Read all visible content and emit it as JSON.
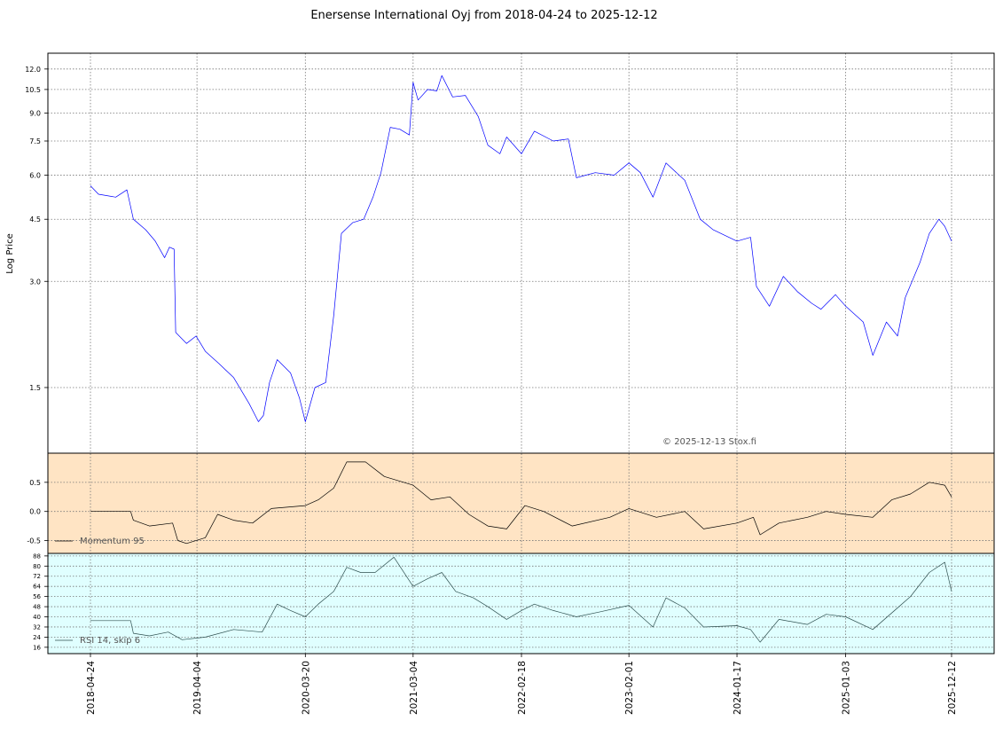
{
  "chart_data": {
    "type": "line",
    "title": "Enersense International Oyj from 2018-04-24 to 2025-12-12",
    "watermark": "© 2025-12-13 Stox.fi",
    "x_tick_labels": [
      "2018-04-24",
      "2019-04-04",
      "2020-03-20",
      "2021-03-04",
      "2022-02-18",
      "2023-02-01",
      "2024-01-17",
      "2025-01-03",
      "2025-12-12"
    ],
    "price_panel": {
      "ylabel": "Log Price",
      "scale": "log",
      "y_ticks": [
        "1.5",
        "3.0",
        "4.5",
        "6.0",
        "7.5",
        "9.0",
        "10.5",
        "12.0"
      ],
      "ylim": [
        1.0,
        13.0
      ],
      "series_color": "#0000ff",
      "series": [
        {
          "x": "2018-04-24",
          "y": 5.6
        },
        {
          "x": "2018-05-20",
          "y": 5.3
        },
        {
          "x": "2018-07-15",
          "y": 5.2
        },
        {
          "x": "2018-08-20",
          "y": 5.45
        },
        {
          "x": "2018-09-10",
          "y": 4.5
        },
        {
          "x": "2018-10-20",
          "y": 4.2
        },
        {
          "x": "2018-11-20",
          "y": 3.9
        },
        {
          "x": "2018-12-20",
          "y": 3.5
        },
        {
          "x": "2019-01-05",
          "y": 3.75
        },
        {
          "x": "2019-01-20",
          "y": 3.7
        },
        {
          "x": "2019-01-25",
          "y": 2.15
        },
        {
          "x": "2019-03-01",
          "y": 2.0
        },
        {
          "x": "2019-04-01",
          "y": 2.1
        },
        {
          "x": "2019-05-01",
          "y": 1.9
        },
        {
          "x": "2019-06-15",
          "y": 1.75
        },
        {
          "x": "2019-08-01",
          "y": 1.6
        },
        {
          "x": "2019-09-20",
          "y": 1.35
        },
        {
          "x": "2019-10-20",
          "y": 1.2
        },
        {
          "x": "2019-11-05",
          "y": 1.25
        },
        {
          "x": "2019-11-25",
          "y": 1.55
        },
        {
          "x": "2019-12-20",
          "y": 1.8
        },
        {
          "x": "2020-02-01",
          "y": 1.65
        },
        {
          "x": "2020-03-01",
          "y": 1.4
        },
        {
          "x": "2020-03-20",
          "y": 1.2
        },
        {
          "x": "2020-04-20",
          "y": 1.5
        },
        {
          "x": "2020-05-25",
          "y": 1.55
        },
        {
          "x": "2020-06-20",
          "y": 2.4
        },
        {
          "x": "2020-07-15",
          "y": 4.1
        },
        {
          "x": "2020-08-20",
          "y": 4.4
        },
        {
          "x": "2020-09-25",
          "y": 4.5
        },
        {
          "x": "2020-10-25",
          "y": 5.2
        },
        {
          "x": "2020-11-20",
          "y": 6.1
        },
        {
          "x": "2020-12-20",
          "y": 8.2
        },
        {
          "x": "2021-01-20",
          "y": 8.1
        },
        {
          "x": "2021-02-20",
          "y": 7.8
        },
        {
          "x": "2021-03-04",
          "y": 11.0
        },
        {
          "x": "2021-03-20",
          "y": 9.8
        },
        {
          "x": "2021-04-20",
          "y": 10.5
        },
        {
          "x": "2021-05-20",
          "y": 10.4
        },
        {
          "x": "2021-06-05",
          "y": 11.5
        },
        {
          "x": "2021-07-10",
          "y": 10.0
        },
        {
          "x": "2021-08-20",
          "y": 10.1
        },
        {
          "x": "2021-10-01",
          "y": 8.8
        },
        {
          "x": "2021-11-01",
          "y": 7.3
        },
        {
          "x": "2021-12-10",
          "y": 6.9
        },
        {
          "x": "2022-01-01",
          "y": 7.7
        },
        {
          "x": "2022-02-18",
          "y": 6.9
        },
        {
          "x": "2022-04-01",
          "y": 8.0
        },
        {
          "x": "2022-06-01",
          "y": 7.5
        },
        {
          "x": "2022-07-20",
          "y": 7.6
        },
        {
          "x": "2022-08-15",
          "y": 5.9
        },
        {
          "x": "2022-10-15",
          "y": 6.1
        },
        {
          "x": "2022-12-15",
          "y": 6.0
        },
        {
          "x": "2023-02-01",
          "y": 6.5
        },
        {
          "x": "2023-03-10",
          "y": 6.1
        },
        {
          "x": "2023-04-20",
          "y": 5.2
        },
        {
          "x": "2023-06-01",
          "y": 6.5
        },
        {
          "x": "2023-08-01",
          "y": 5.8
        },
        {
          "x": "2023-09-20",
          "y": 4.5
        },
        {
          "x": "2023-11-01",
          "y": 4.2
        },
        {
          "x": "2024-01-17",
          "y": 3.9
        },
        {
          "x": "2024-03-01",
          "y": 4.0
        },
        {
          "x": "2024-03-20",
          "y": 2.9
        },
        {
          "x": "2024-05-01",
          "y": 2.55
        },
        {
          "x": "2024-06-15",
          "y": 3.1
        },
        {
          "x": "2024-08-01",
          "y": 2.8
        },
        {
          "x": "2024-09-15",
          "y": 2.6
        },
        {
          "x": "2024-10-15",
          "y": 2.5
        },
        {
          "x": "2024-12-01",
          "y": 2.75
        },
        {
          "x": "2025-01-03",
          "y": 2.55
        },
        {
          "x": "2025-03-01",
          "y": 2.3
        },
        {
          "x": "2025-04-01",
          "y": 1.85
        },
        {
          "x": "2025-05-15",
          "y": 2.3
        },
        {
          "x": "2025-06-20",
          "y": 2.1
        },
        {
          "x": "2025-07-15",
          "y": 2.7
        },
        {
          "x": "2025-09-01",
          "y": 3.4
        },
        {
          "x": "2025-10-01",
          "y": 4.1
        },
        {
          "x": "2025-11-01",
          "y": 4.5
        },
        {
          "x": "2025-11-20",
          "y": 4.3
        },
        {
          "x": "2025-12-12",
          "y": 3.9
        }
      ]
    },
    "momentum_panel": {
      "legend": "Momentum 95",
      "y_ticks": [
        "-0.5",
        "0.0",
        "0.5"
      ],
      "y_tick_values": [
        -0.5,
        0.0,
        0.5
      ],
      "ylim": [
        -0.72,
        1.0
      ],
      "background": "#ffe4c4",
      "series_color": "#000000",
      "series": [
        {
          "x": "2018-04-24",
          "y": 0.0
        },
        {
          "x": "2018-09-01",
          "y": 0.0
        },
        {
          "x": "2018-09-10",
          "y": -0.15
        },
        {
          "x": "2018-11-01",
          "y": -0.25
        },
        {
          "x": "2019-01-15",
          "y": -0.2
        },
        {
          "x": "2019-02-01",
          "y": -0.5
        },
        {
          "x": "2019-03-01",
          "y": -0.55
        },
        {
          "x": "2019-05-01",
          "y": -0.45
        },
        {
          "x": "2019-06-10",
          "y": -0.05
        },
        {
          "x": "2019-08-01",
          "y": -0.15
        },
        {
          "x": "2019-10-01",
          "y": -0.2
        },
        {
          "x": "2019-12-01",
          "y": 0.05
        },
        {
          "x": "2020-03-20",
          "y": 0.1
        },
        {
          "x": "2020-05-01",
          "y": 0.2
        },
        {
          "x": "2020-06-20",
          "y": 0.4
        },
        {
          "x": "2020-08-01",
          "y": 0.85
        },
        {
          "x": "2020-10-01",
          "y": 0.85
        },
        {
          "x": "2020-12-01",
          "y": 0.6
        },
        {
          "x": "2021-03-04",
          "y": 0.45
        },
        {
          "x": "2021-05-01",
          "y": 0.2
        },
        {
          "x": "2021-07-01",
          "y": 0.25
        },
        {
          "x": "2021-09-01",
          "y": -0.05
        },
        {
          "x": "2021-11-01",
          "y": -0.25
        },
        {
          "x": "2022-01-01",
          "y": -0.3
        },
        {
          "x": "2022-03-01",
          "y": 0.1
        },
        {
          "x": "2022-05-01",
          "y": 0.0
        },
        {
          "x": "2022-08-01",
          "y": -0.25
        },
        {
          "x": "2022-12-01",
          "y": -0.1
        },
        {
          "x": "2023-02-01",
          "y": 0.05
        },
        {
          "x": "2023-05-01",
          "y": -0.1
        },
        {
          "x": "2023-08-01",
          "y": 0.0
        },
        {
          "x": "2023-10-01",
          "y": -0.3
        },
        {
          "x": "2024-01-17",
          "y": -0.2
        },
        {
          "x": "2024-03-10",
          "y": -0.1
        },
        {
          "x": "2024-04-01",
          "y": -0.4
        },
        {
          "x": "2024-06-01",
          "y": -0.2
        },
        {
          "x": "2024-09-01",
          "y": -0.1
        },
        {
          "x": "2024-11-01",
          "y": 0.0
        },
        {
          "x": "2025-01-03",
          "y": -0.05
        },
        {
          "x": "2025-04-01",
          "y": -0.1
        },
        {
          "x": "2025-06-01",
          "y": 0.2
        },
        {
          "x": "2025-08-01",
          "y": 0.3
        },
        {
          "x": "2025-10-01",
          "y": 0.5
        },
        {
          "x": "2025-11-20",
          "y": 0.45
        },
        {
          "x": "2025-12-12",
          "y": 0.25
        }
      ]
    },
    "rsi_panel": {
      "legend": "RSI 14, skip 6",
      "y_ticks": [
        "16",
        "24",
        "32",
        "40",
        "48",
        "56",
        "64",
        "72",
        "80",
        "88"
      ],
      "y_tick_values": [
        16,
        24,
        32,
        40,
        48,
        56,
        64,
        72,
        80,
        88
      ],
      "ylim": [
        11,
        90
      ],
      "background": "#e0ffff",
      "series_color": "#2f4f4f",
      "series": [
        {
          "x": "2018-04-24",
          "y": 37
        },
        {
          "x": "2018-09-01",
          "y": 37
        },
        {
          "x": "2018-09-10",
          "y": 27
        },
        {
          "x": "2018-11-01",
          "y": 25
        },
        {
          "x": "2019-01-01",
          "y": 28
        },
        {
          "x": "2019-02-15",
          "y": 22
        },
        {
          "x": "2019-05-01",
          "y": 24
        },
        {
          "x": "2019-08-01",
          "y": 30
        },
        {
          "x": "2019-11-01",
          "y": 28
        },
        {
          "x": "2019-12-20",
          "y": 50
        },
        {
          "x": "2020-02-01",
          "y": 45
        },
        {
          "x": "2020-03-20",
          "y": 40
        },
        {
          "x": "2020-05-01",
          "y": 50
        },
        {
          "x": "2020-06-20",
          "y": 60
        },
        {
          "x": "2020-08-01",
          "y": 79
        },
        {
          "x": "2020-09-15",
          "y": 75
        },
        {
          "x": "2020-11-01",
          "y": 75
        },
        {
          "x": "2021-01-01",
          "y": 87
        },
        {
          "x": "2021-03-04",
          "y": 64
        },
        {
          "x": "2021-04-20",
          "y": 70
        },
        {
          "x": "2021-06-05",
          "y": 75
        },
        {
          "x": "2021-07-20",
          "y": 60
        },
        {
          "x": "2021-09-15",
          "y": 55
        },
        {
          "x": "2021-11-01",
          "y": 48
        },
        {
          "x": "2022-01-01",
          "y": 38
        },
        {
          "x": "2022-02-18",
          "y": 45
        },
        {
          "x": "2022-04-01",
          "y": 50
        },
        {
          "x": "2022-06-01",
          "y": 45
        },
        {
          "x": "2022-08-15",
          "y": 40
        },
        {
          "x": "2022-11-01",
          "y": 44
        },
        {
          "x": "2023-02-01",
          "y": 49
        },
        {
          "x": "2023-04-20",
          "y": 32
        },
        {
          "x": "2023-06-01",
          "y": 55
        },
        {
          "x": "2023-08-01",
          "y": 47
        },
        {
          "x": "2023-10-01",
          "y": 32
        },
        {
          "x": "2024-01-17",
          "y": 33
        },
        {
          "x": "2024-03-01",
          "y": 30
        },
        {
          "x": "2024-04-01",
          "y": 20
        },
        {
          "x": "2024-06-01",
          "y": 38
        },
        {
          "x": "2024-09-01",
          "y": 34
        },
        {
          "x": "2024-11-01",
          "y": 42
        },
        {
          "x": "2025-01-03",
          "y": 40
        },
        {
          "x": "2025-04-01",
          "y": 30
        },
        {
          "x": "2025-06-01",
          "y": 43
        },
        {
          "x": "2025-08-01",
          "y": 56
        },
        {
          "x": "2025-10-01",
          "y": 75
        },
        {
          "x": "2025-11-20",
          "y": 83
        },
        {
          "x": "2025-12-12",
          "y": 60
        }
      ]
    }
  }
}
